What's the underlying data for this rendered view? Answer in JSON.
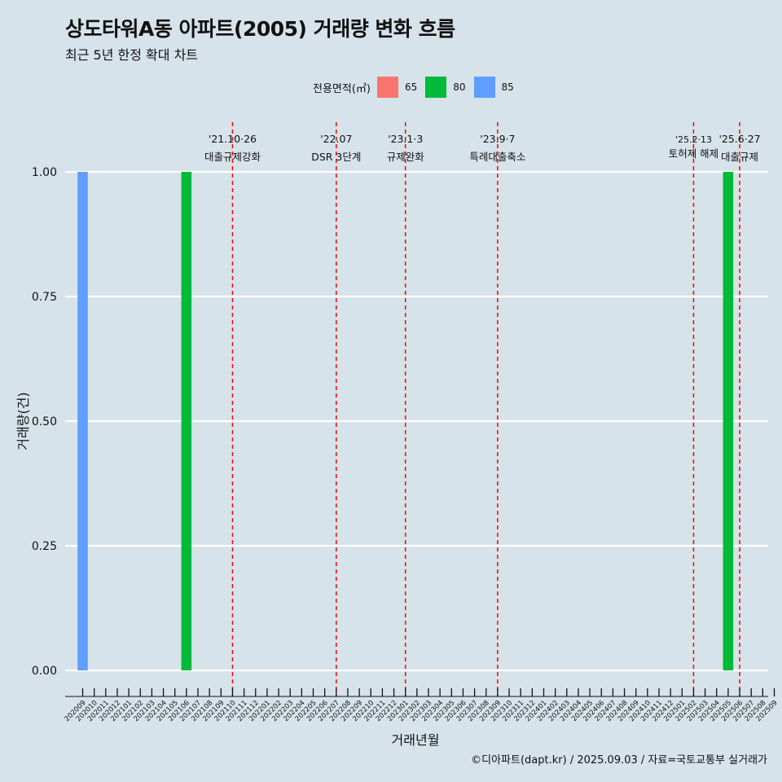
{
  "chart_data": {
    "type": "bar",
    "title": "상도타워A동 아파트(2005) 거래량 변화 흐름",
    "subtitle": "최근 5년 한정 확대 차트",
    "xlabel": "거래년월",
    "ylabel": "거래량(건)",
    "ylim": [
      0,
      1
    ],
    "yticks": [
      0,
      0.25,
      0.5,
      0.75,
      1
    ],
    "ytick_labels": [
      "0.00",
      "0.25",
      "0.50",
      "0.75",
      "1.00"
    ],
    "legend_title": "전용면적(㎡)",
    "legend_position": "top",
    "series": [
      {
        "name": "65",
        "color": "#f8766d"
      },
      {
        "name": "80",
        "color": "#00ba38"
      },
      {
        "name": "85",
        "color": "#619cff"
      }
    ],
    "categories": [
      "202009",
      "202010",
      "202011",
      "202012",
      "202101",
      "202102",
      "202103",
      "202104",
      "202105",
      "202106",
      "202107",
      "202108",
      "202109",
      "202110",
      "202111",
      "202112",
      "202201",
      "202202",
      "202203",
      "202204",
      "202205",
      "202206",
      "202207",
      "202208",
      "202209",
      "202210",
      "202211",
      "202212",
      "202301",
      "202302",
      "202303",
      "202304",
      "202305",
      "202306",
      "202307",
      "202308",
      "202309",
      "202310",
      "202311",
      "202312",
      "202401",
      "202402",
      "202403",
      "202404",
      "202405",
      "202406",
      "202407",
      "202408",
      "202409",
      "202410",
      "202411",
      "202412",
      "202501",
      "202502",
      "202503",
      "202504",
      "202505",
      "202506",
      "202507",
      "202508",
      "202509"
    ],
    "bars": [
      {
        "month": "202009",
        "series": "85",
        "value": 1
      },
      {
        "month": "202106",
        "series": "80",
        "value": 1
      },
      {
        "month": "202505",
        "series": "80",
        "value": 1
      }
    ],
    "annotations": [
      {
        "month": "202110",
        "date": "'21.10·26",
        "label": "대출규제강화"
      },
      {
        "month": "202207",
        "date": "'22.07",
        "label": "DSR 3단계"
      },
      {
        "month": "202301",
        "date": "'23.1·3",
        "label": "규제완화"
      },
      {
        "month": "202309",
        "date": "'23.9·7",
        "label": "특례대출축소"
      },
      {
        "month": "202502",
        "date": "'25.2·13",
        "label": "토허제 해제"
      },
      {
        "month": "202506",
        "date": "'25.6·27",
        "label": "대출규제"
      }
    ],
    "annotation_color": "#ff0000",
    "caption": "©디아파트(dapt.kr) / 2025.09.03 / 자료=국토교통부 실거래가"
  }
}
